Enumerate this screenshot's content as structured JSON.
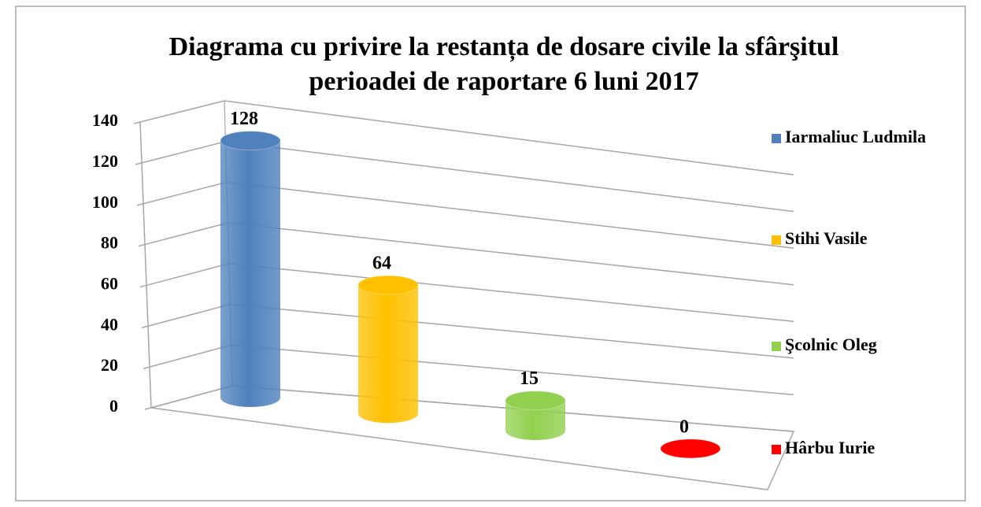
{
  "chart_data": {
    "type": "bar",
    "title": "Diagrama cu privire la restanța de dosare civile la sfârşitul perioadei de raportare 6 luni 2017",
    "categories": [
      "Iarmaliuc Ludmila",
      "Stihi Vasile",
      "Şcolnic Oleg",
      "Hârbu Iurie"
    ],
    "values": [
      128,
      64,
      15,
      0
    ],
    "colors": [
      "#4f81bd",
      "#ffc000",
      "#92d050",
      "#ff0000"
    ],
    "ylim": [
      0,
      140
    ],
    "yticks": [
      0,
      20,
      40,
      60,
      80,
      100,
      120,
      140
    ],
    "grid": true,
    "legend": "right"
  }
}
